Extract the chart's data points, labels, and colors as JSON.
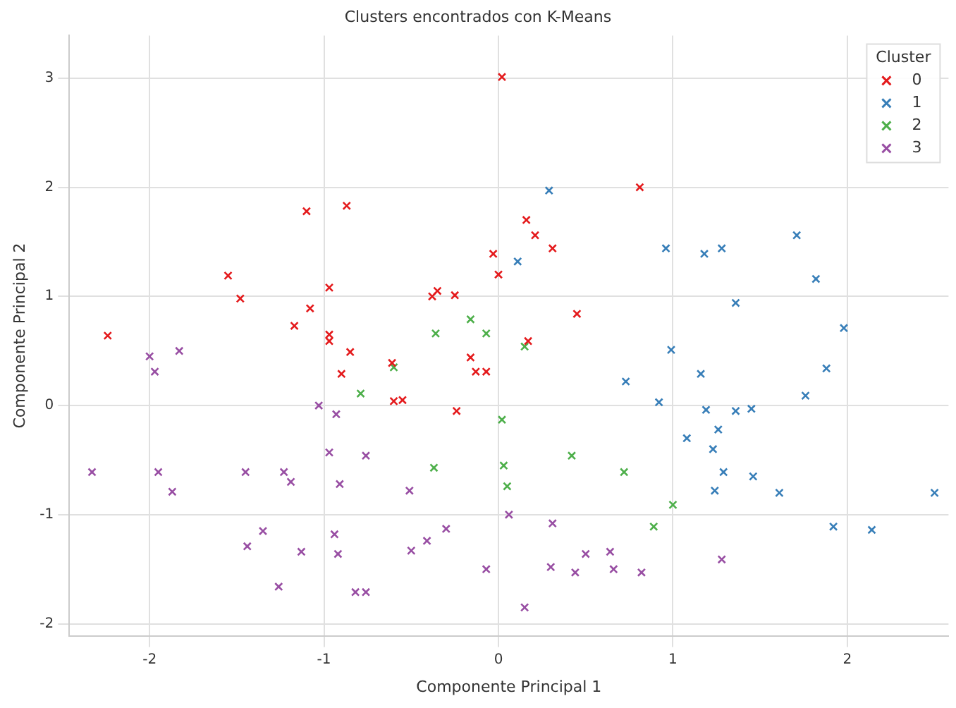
{
  "chart_data": {
    "type": "scatter",
    "title": "Clusters encontrados con K-Means",
    "xlabel": "Componente Principal 1",
    "ylabel": "Componente Principal 2",
    "legend_title": "Cluster",
    "legend": "top right",
    "grid": true,
    "marker": "cross",
    "xlim": [
      -2.46,
      2.58
    ],
    "xticks": [
      -2,
      -1,
      0,
      1,
      2
    ],
    "ylim": [
      -2.11,
      3.39
    ],
    "yticks": [
      -2,
      -1,
      0,
      1,
      2,
      3
    ],
    "series": [
      {
        "name": "0",
        "color": "#e41a1c",
        "x": [
          -2.24,
          -1.55,
          -1.48,
          -1.1,
          -1.17,
          -1.08,
          -0.97,
          -0.97,
          -0.97,
          -0.9,
          -0.85,
          -0.61,
          -0.6,
          -0.55,
          -0.38,
          -0.35,
          -0.25,
          -0.24,
          -0.16,
          -0.13,
          -0.07,
          -0.03,
          0,
          0.02,
          0.16,
          0.21,
          0.31,
          0.45,
          0.17,
          0.81,
          -0.87
        ],
        "values": [
          0.64,
          1.19,
          0.98,
          1.78,
          0.73,
          0.89,
          1.08,
          0.65,
          0.59,
          0.29,
          0.49,
          0.39,
          0.04,
          0.05,
          1.0,
          1.05,
          1.01,
          -0.05,
          0.44,
          0.31,
          0.31,
          1.39,
          1.2,
          3.01,
          1.7,
          1.56,
          1.44,
          0.84,
          0.59,
          2.0,
          1.83
        ]
      },
      {
        "name": "1",
        "color": "#377eb8",
        "x": [
          0.96,
          0.99,
          0.92,
          1.18,
          1.28,
          1.36,
          1.71,
          1.82,
          1.98,
          1.88,
          1.76,
          1.16,
          1.19,
          1.08,
          1.23,
          1.26,
          1.36,
          1.45,
          1.29,
          1.24,
          1.46,
          1.61,
          1.92,
          2.14,
          2.5,
          0.11,
          0.29,
          0.73
        ],
        "values": [
          1.44,
          0.51,
          0.03,
          1.39,
          1.44,
          0.94,
          1.56,
          1.16,
          0.71,
          0.34,
          0.09,
          0.29,
          -0.04,
          -0.3,
          -0.4,
          -0.22,
          -0.05,
          -0.03,
          -0.61,
          -0.78,
          -0.65,
          -0.8,
          -1.11,
          -1.14,
          -0.8,
          1.32,
          1.97,
          0.22
        ]
      },
      {
        "name": "2",
        "color": "#4daf4a",
        "x": [
          -0.6,
          -0.79,
          -0.36,
          -0.16,
          -0.07,
          0.15,
          0.02,
          0.42,
          0.72,
          0.03,
          0.05,
          -0.37,
          1.0,
          0.89
        ],
        "values": [
          0.35,
          0.11,
          0.66,
          0.79,
          0.66,
          0.54,
          -0.13,
          -0.46,
          -0.61,
          -0.55,
          -0.74,
          -0.57,
          -0.91,
          -1.11
        ]
      },
      {
        "name": "3",
        "color": "#984ea3",
        "x": [
          -2.33,
          -1.95,
          -1.87,
          -2.0,
          -1.97,
          -1.45,
          -1.23,
          -1.19,
          -1.35,
          -1.44,
          -1.13,
          -1.26,
          -0.94,
          -0.92,
          -0.91,
          -0.82,
          -0.76,
          -0.97,
          -0.93,
          -0.76,
          -0.51,
          -0.5,
          -0.41,
          -0.3,
          -0.07,
          0.06,
          0.15,
          0.31,
          0.3,
          0.44,
          0.5,
          0.64,
          0.66,
          0.82,
          1.28,
          -1.83,
          -1.03
        ],
        "values": [
          -0.61,
          -0.61,
          -0.79,
          0.45,
          0.31,
          -0.61,
          -0.61,
          -0.7,
          -1.15,
          -1.29,
          -1.34,
          -1.66,
          -1.18,
          -1.36,
          -0.72,
          -1.71,
          -1.71,
          -0.43,
          -0.08,
          -0.46,
          -0.78,
          -1.33,
          -1.24,
          -1.13,
          -1.5,
          -1.0,
          -1.85,
          -1.08,
          -1.48,
          -1.53,
          -1.36,
          -1.34,
          -1.5,
          -1.53,
          -1.41,
          0.5,
          0.0
        ]
      }
    ]
  }
}
